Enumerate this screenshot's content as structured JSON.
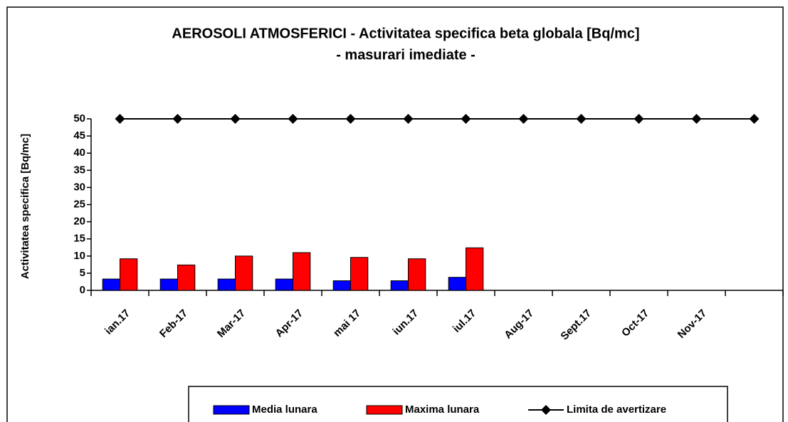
{
  "chart_data": {
    "type": "bar",
    "title": "AEROSOLI   ATMOSFERICI - Activitatea specifica beta globala [Bq/mc]",
    "subtitle": "- masurari imediate -",
    "y_label": "Activitatea specifica [Bq/mc]",
    "categories": [
      "ian.17",
      "Feb-17",
      "Mar-17",
      "Apr-17",
      "mai 17",
      "iun.17",
      "iul.17",
      "Aug-17",
      "Sept.17",
      "Oct-17",
      "Nov-17",
      null
    ],
    "series": [
      {
        "name": "Media lunara",
        "type": "bar",
        "color": "#0000ff",
        "values": [
          3.3,
          3.3,
          3.3,
          3.3,
          2.8,
          2.8,
          3.8,
          null,
          null,
          null,
          null,
          null
        ]
      },
      {
        "name": "Maxima lunara",
        "type": "bar",
        "color": "#ff0000",
        "values": [
          9.2,
          7.4,
          10,
          11,
          9.6,
          9.2,
          12.4,
          null,
          null,
          null,
          null,
          null
        ]
      },
      {
        "name": "Limita de avertizare",
        "type": "line",
        "color": "#000000",
        "values": [
          50,
          50,
          50,
          50,
          50,
          50,
          50,
          50,
          50,
          50,
          50,
          50
        ]
      }
    ],
    "ylim": [
      0,
      50
    ],
    "yticks": [
      0,
      5,
      10,
      15,
      20,
      25,
      30,
      35,
      40,
      45,
      50
    ],
    "grid": false,
    "legend": "bottom"
  }
}
